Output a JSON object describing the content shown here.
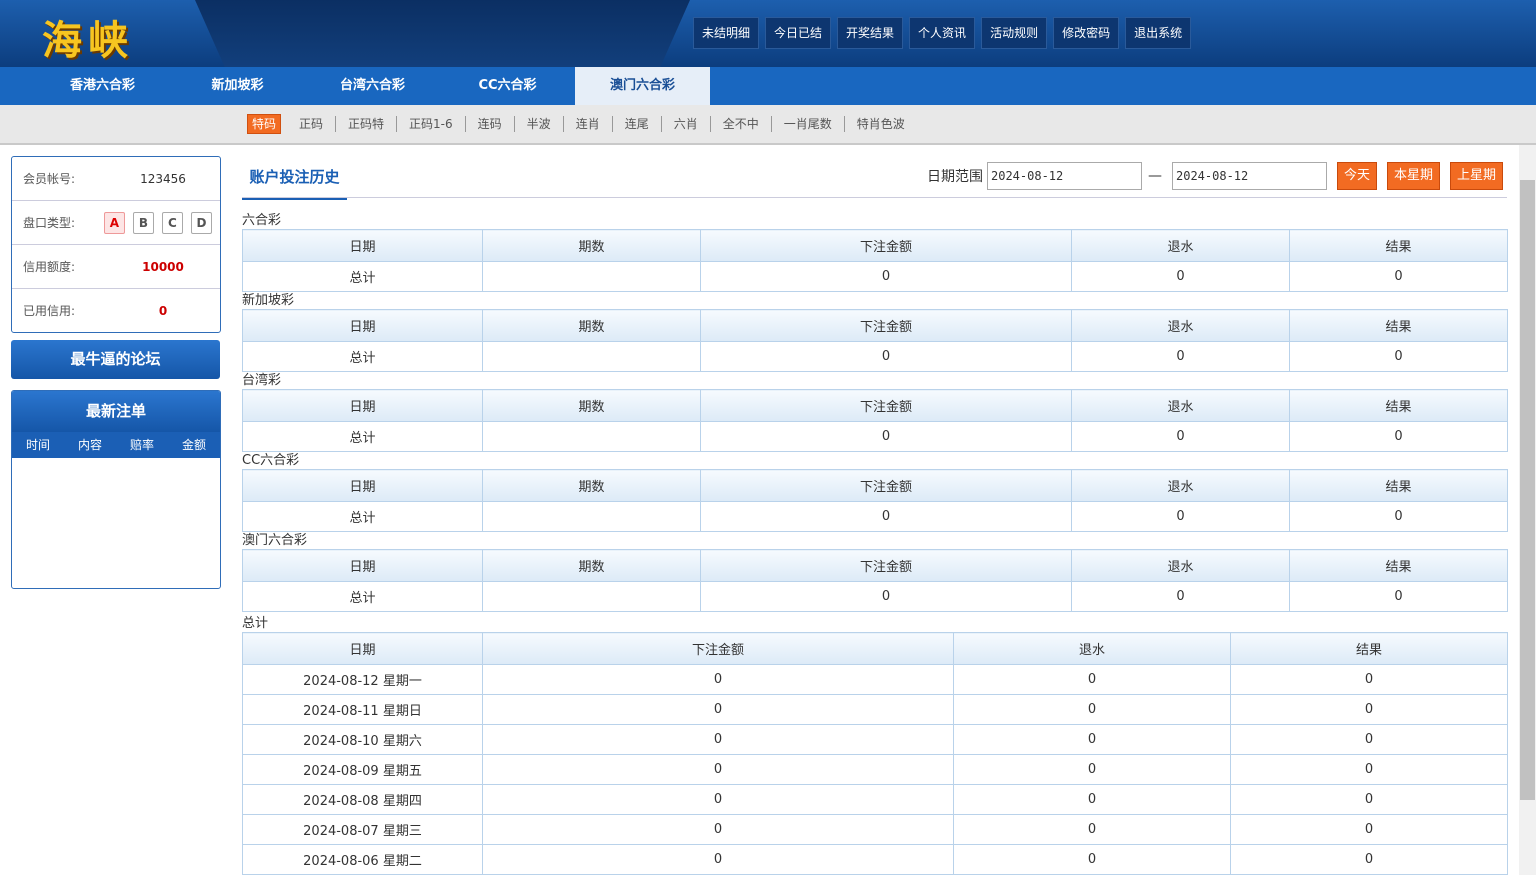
{
  "header": {
    "logo": "海峡",
    "menu": [
      "未结明细",
      "今日已结",
      "开奖结果",
      "个人资讯",
      "活动规则",
      "修改密码",
      "退出系统"
    ]
  },
  "tabs": {
    "items": [
      "香港六合彩",
      "新加坡彩",
      "台湾六合彩",
      "CC六合彩",
      "澳门六合彩"
    ],
    "active": 4
  },
  "sub_tabs": {
    "items": [
      "特码",
      "正码",
      "正码特",
      "正码1-6",
      "连码",
      "半波",
      "连肖",
      "连尾",
      "六肖",
      "全不中",
      "一肖尾数",
      "特肖色波"
    ],
    "active": 0
  },
  "sidebar": {
    "account": {
      "label": "会员帐号:",
      "value": 123456
    },
    "plate": {
      "label": "盘口类型:",
      "options": [
        "A",
        "B",
        "C",
        "D"
      ],
      "selected": 0
    },
    "credit": {
      "label": "信用额度:",
      "value": 10000
    },
    "used": {
      "label": "已用信用:",
      "value": 0
    },
    "forum": "最牛逼的论坛",
    "latest": {
      "title": "最新注单",
      "columns": [
        "时间",
        "内容",
        "赔率",
        "金额"
      ]
    }
  },
  "main": {
    "title": "账户投注历史",
    "date_label": "日期范围",
    "start": "2024-08-12",
    "separator": "—",
    "end": "2024-08-12",
    "buttons": [
      "今天",
      "本星期",
      "上星期"
    ],
    "sections": [
      {
        "name": "六合彩",
        "headers": [
          "日期",
          "期数",
          "下注金额",
          "退水",
          "结果"
        ],
        "total_label": "总计",
        "values": [
          0,
          0,
          0
        ]
      },
      {
        "name": "新加坡彩",
        "headers": [
          "日期",
          "期数",
          "下注金额",
          "退水",
          "结果"
        ],
        "total_label": "总计",
        "values": [
          0,
          0,
          0
        ]
      },
      {
        "name": "台湾彩",
        "headers": [
          "日期",
          "期数",
          "下注金额",
          "退水",
          "结果"
        ],
        "total_label": "总计",
        "values": [
          0,
          0,
          0
        ]
      },
      {
        "name": "CC六合彩",
        "headers": [
          "日期",
          "期数",
          "下注金额",
          "退水",
          "结果"
        ],
        "total_label": "总计",
        "values": [
          0,
          0,
          0
        ]
      },
      {
        "name": "澳门六合彩",
        "headers": [
          "日期",
          "期数",
          "下注金额",
          "退水",
          "结果"
        ],
        "total_label": "总计",
        "values": [
          0,
          0,
          0
        ]
      }
    ],
    "summary": {
      "name": "总计",
      "headers": [
        "日期",
        "下注金额",
        "退水",
        "结果"
      ],
      "rows": [
        {
          "date": "2024-08-12 星期一",
          "values": [
            0,
            0,
            0
          ]
        },
        {
          "date": "2024-08-11 星期日",
          "values": [
            0,
            0,
            0
          ]
        },
        {
          "date": "2024-08-10 星期六",
          "values": [
            0,
            0,
            0
          ]
        },
        {
          "date": "2024-08-09 星期五",
          "values": [
            0,
            0,
            0
          ]
        },
        {
          "date": "2024-08-08 星期四",
          "values": [
            0,
            0,
            0
          ]
        },
        {
          "date": "2024-08-07 星期三",
          "values": [
            0,
            0,
            0
          ]
        },
        {
          "date": "2024-08-06 星期二",
          "values": [
            0,
            0,
            0
          ]
        }
      ]
    }
  }
}
